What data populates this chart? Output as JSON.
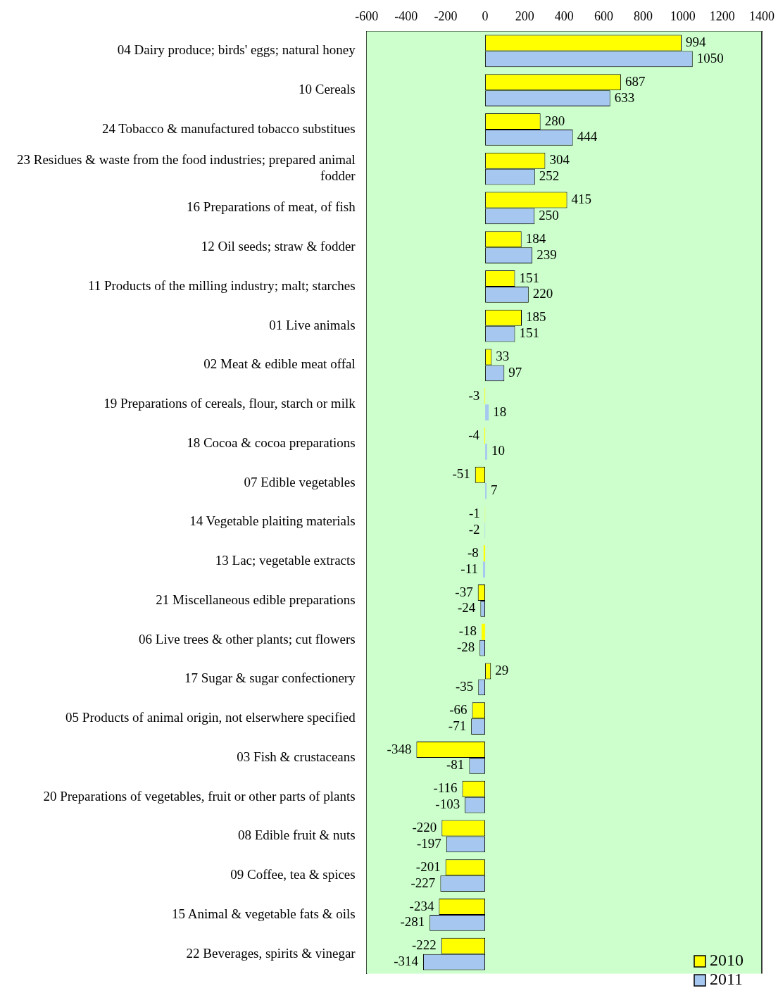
{
  "chart_data": {
    "type": "bar",
    "orientation": "horizontal",
    "categories": [
      "04 Dairy produce; birds' eggs; natural honey",
      "10 Cereals",
      "24 Tobacco & manufactured tobacco substitues",
      "23 Residues & waste from the food industries; prepared animal fodder",
      "16 Preparations of meat, of fish",
      "12 Oil seeds; straw & fodder",
      "11 Products of the milling industry; malt; starches",
      "01 Live animals",
      "02 Meat & edible meat offal",
      "19 Preparations of cereals, flour, starch or milk",
      "18 Cocoa & cocoa preparations",
      "07 Edible vegetables",
      "14 Vegetable plaiting materials",
      "13 Lac; vegetable extracts",
      "21 Miscellaneous edible preparations",
      "06 Live trees & other plants; cut flowers",
      "17 Sugar & sugar confectionery",
      "05 Products of animal origin, not elserwhere specified",
      "03 Fish & crustaceans",
      "20 Preparations of vegetables, fruit or other parts of plants",
      "08 Edible fruit & nuts",
      "09 Coffee, tea & spices",
      "15 Animal & vegetable fats & oils",
      "22 Beverages, spirits & vinegar"
    ],
    "series": [
      {
        "name": "2010",
        "color": "#ffff00",
        "values": [
          994,
          687,
          280,
          304,
          415,
          184,
          151,
          185,
          33,
          -3,
          -4,
          -51,
          -1,
          -8,
          -37,
          -18,
          29,
          -66,
          -348,
          -116,
          -220,
          -201,
          -234,
          -222
        ]
      },
      {
        "name": "2011",
        "color": "#a6c8f0",
        "values": [
          1050,
          633,
          444,
          252,
          250,
          239,
          220,
          151,
          97,
          18,
          10,
          7,
          -2,
          -11,
          -24,
          -28,
          -35,
          -71,
          -81,
          -103,
          -197,
          -227,
          -281,
          -314
        ]
      }
    ],
    "xlim": [
      -600,
      1400
    ],
    "xticks": [
      -600,
      -400,
      -200,
      0,
      200,
      400,
      600,
      800,
      1000,
      1200,
      1400
    ],
    "data_labels": true,
    "grid": false,
    "legend": "bottom right"
  }
}
